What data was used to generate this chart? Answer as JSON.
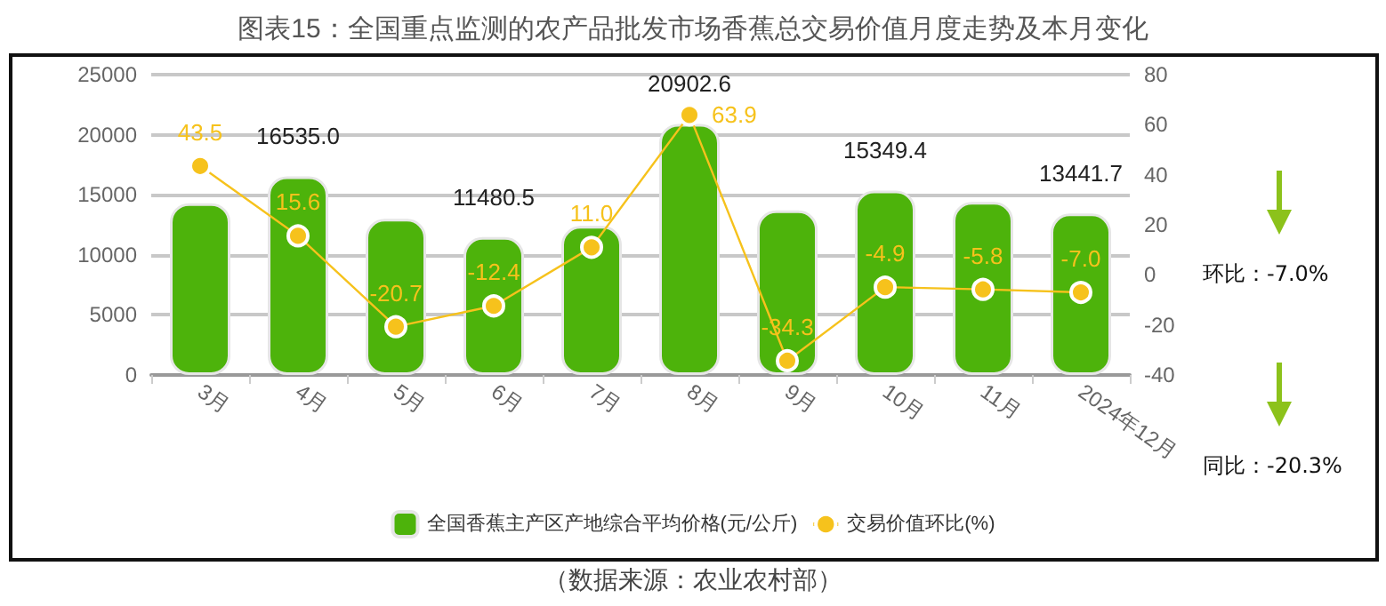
{
  "chart_data": {
    "type": "bar",
    "title": "图表15：全国重点监测的农产品批发市场香蕉总交易价值月度走势及本月变化",
    "categories": [
      "3月",
      "4月",
      "5月",
      "6月",
      "7月",
      "8月",
      "9月",
      "10月",
      "11月",
      "2024年12月"
    ],
    "series": [
      {
        "name": "全国香蕉主产区产地综合平均价格(元/公斤)",
        "color": "#4db30b",
        "values": [
          14300,
          16535.0,
          13000,
          11480.5,
          12400,
          20902.6,
          13700,
          15349.4,
          14400,
          13441.7
        ],
        "value_labels": [
          null,
          "16535.0",
          null,
          "11480.5",
          null,
          "20902.6",
          null,
          "15349.4",
          null,
          "13441.7"
        ]
      },
      {
        "name": "交易价值环比(%)",
        "type": "line",
        "axis": "y2",
        "color": "#f6c21c",
        "values": [
          43.5,
          15.6,
          -20.7,
          -12.4,
          11.0,
          63.9,
          -34.3,
          -4.9,
          -5.8,
          -7.0
        ],
        "value_labels": [
          "43.5",
          "15.6",
          "-20.7",
          "-12.4",
          "11.0",
          "63.9",
          "-34.3",
          "-4.9",
          "-5.8",
          "-7.0"
        ]
      }
    ],
    "ylim": [
      0,
      25000
    ],
    "yticks": [
      0,
      5000,
      10000,
      15000,
      20000,
      25000
    ],
    "y2lim": [
      -40,
      80
    ],
    "y2ticks": [
      -40,
      -20,
      0,
      20,
      40,
      60,
      80
    ],
    "grid": "y",
    "legend": "bottom",
    "marker": "circle",
    "line_style": "solid",
    "annotations": [
      "环比：-7.0%",
      "同比：-20.3%",
      "（数据来源：农业农村部）"
    ]
  }
}
